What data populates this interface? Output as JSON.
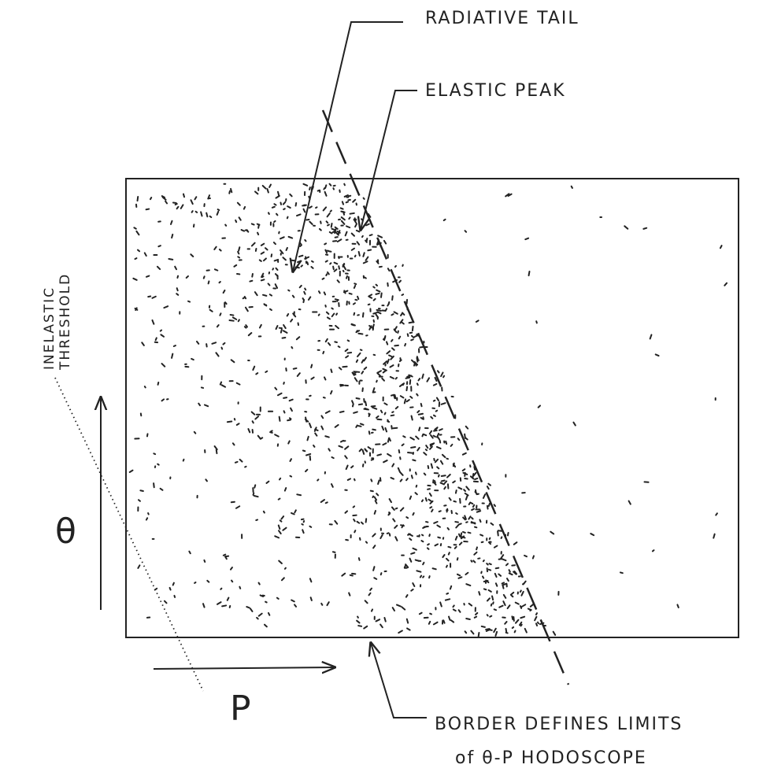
{
  "labels": {
    "radiative_tail": "RADIATIVE TAIL",
    "elastic_peak": "ELASTIC PEAK",
    "inelastic_threshold": [
      "INELASTIC",
      "THRESHOLD"
    ],
    "theta_axis": "θ",
    "p_axis": "P",
    "border_note": [
      "BORDER DEFINES LIMITS",
      "of θ-P HODOSCOPE"
    ]
  }
}
